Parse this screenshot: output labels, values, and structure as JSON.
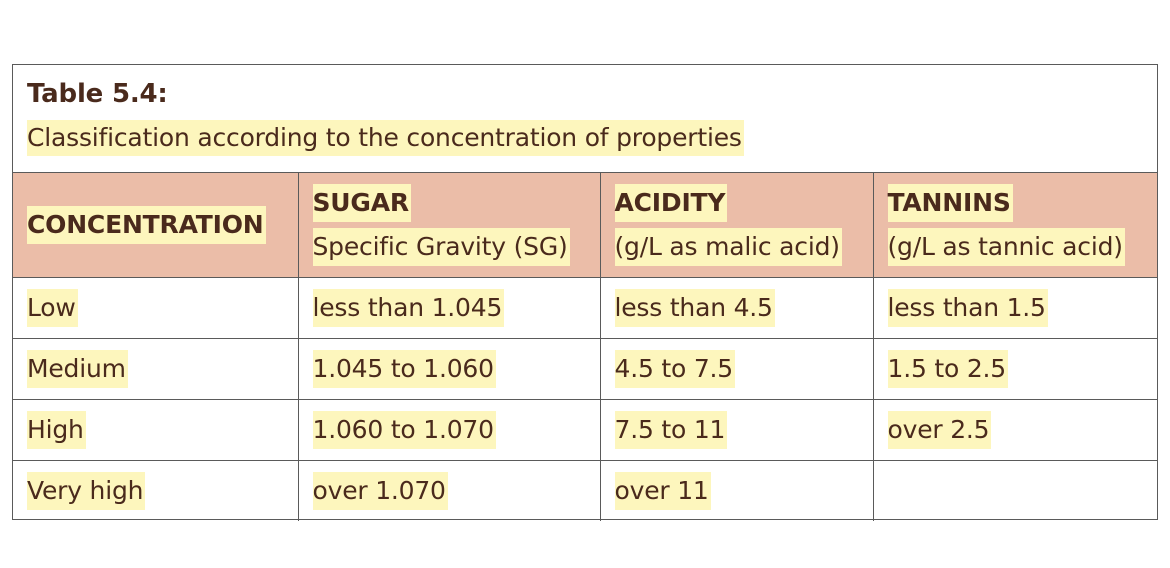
{
  "table": {
    "title": "Table 5.4:",
    "subtitle": "Classification according to the concentration of properties",
    "headers": [
      {
        "title": "CONCENTRATION",
        "sub": ""
      },
      {
        "title": "SUGAR",
        "sub": "Specific Gravity (SG)"
      },
      {
        "title": "ACIDITY",
        "sub": "(g/L as malic acid)"
      },
      {
        "title": "TANNINS",
        "sub": "(g/L as tannic acid)"
      }
    ],
    "rows": [
      [
        "Low",
        "less than 1.045",
        "less than 4.5",
        "less than 1.5"
      ],
      [
        "Medium",
        "1.045 to 1.060",
        "4.5 to 7.5",
        "1.5 to 2.5"
      ],
      [
        "High",
        "1.060 to 1.070",
        "7.5 to 11",
        "over 2.5"
      ],
      [
        "Very high",
        "over 1.070",
        "over 11",
        ""
      ]
    ]
  },
  "colors": {
    "header_bg": "#ebbda8",
    "highlight": "#fdf6bd",
    "text": "#4a2a1c",
    "border": "#5a5a5a"
  }
}
